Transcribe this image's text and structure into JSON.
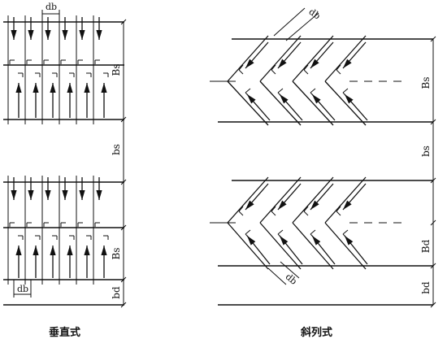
{
  "captions": {
    "vertical": "垂直式",
    "oblique": "斜列式"
  },
  "labels": {
    "db": "db",
    "Bs": "Bs",
    "bs": "bs",
    "bd": "bd",
    "Bd": "Bd"
  },
  "arrow_icon": "filled-arrowhead",
  "line_color": "#111111"
}
